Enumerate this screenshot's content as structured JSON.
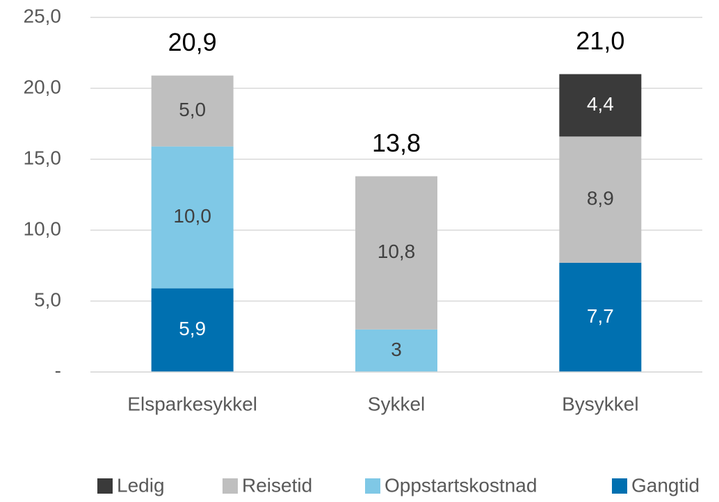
{
  "chart_data": {
    "type": "stacked_bar",
    "categories": [
      "Elsparkesykkel",
      "Sykkel",
      "Bysykkel"
    ],
    "series": [
      {
        "name": "Ledig",
        "color": "#3a3a3a",
        "label_color": "#ffffff",
        "values": [
          null,
          null,
          4.4
        ],
        "value_labels": [
          null,
          null,
          "4,4"
        ]
      },
      {
        "name": "Reisetid",
        "color": "#bfbfbf",
        "label_color": "#404040",
        "values": [
          5.0,
          10.8,
          8.9
        ],
        "value_labels": [
          "5,0",
          "10,8",
          "8,9"
        ]
      },
      {
        "name": "Oppstartskostnad",
        "color": "#7fc8e6",
        "label_color": "#404040",
        "values": [
          10.0,
          3,
          null
        ],
        "value_labels": [
          "10,0",
          "3",
          null
        ]
      },
      {
        "name": "Gangtid",
        "color": "#0070b0",
        "label_color": "#ffffff",
        "values": [
          5.9,
          null,
          7.7
        ],
        "value_labels": [
          "5,9",
          null,
          "7,7"
        ]
      }
    ],
    "totals": [
      20.9,
      13.8,
      21.0
    ],
    "total_labels": [
      "20,9",
      "13,8",
      "21,0"
    ],
    "ylim": [
      0,
      25
    ],
    "yticks": [
      {
        "value": 0,
        "label": "-"
      },
      {
        "value": 5,
        "label": "5,0"
      },
      {
        "value": 10,
        "label": "10,0"
      },
      {
        "value": 15,
        "label": "15,0"
      },
      {
        "value": 20,
        "label": "20,0"
      },
      {
        "value": 25,
        "label": "25,0"
      }
    ],
    "grid": true,
    "legend": "bottom"
  }
}
